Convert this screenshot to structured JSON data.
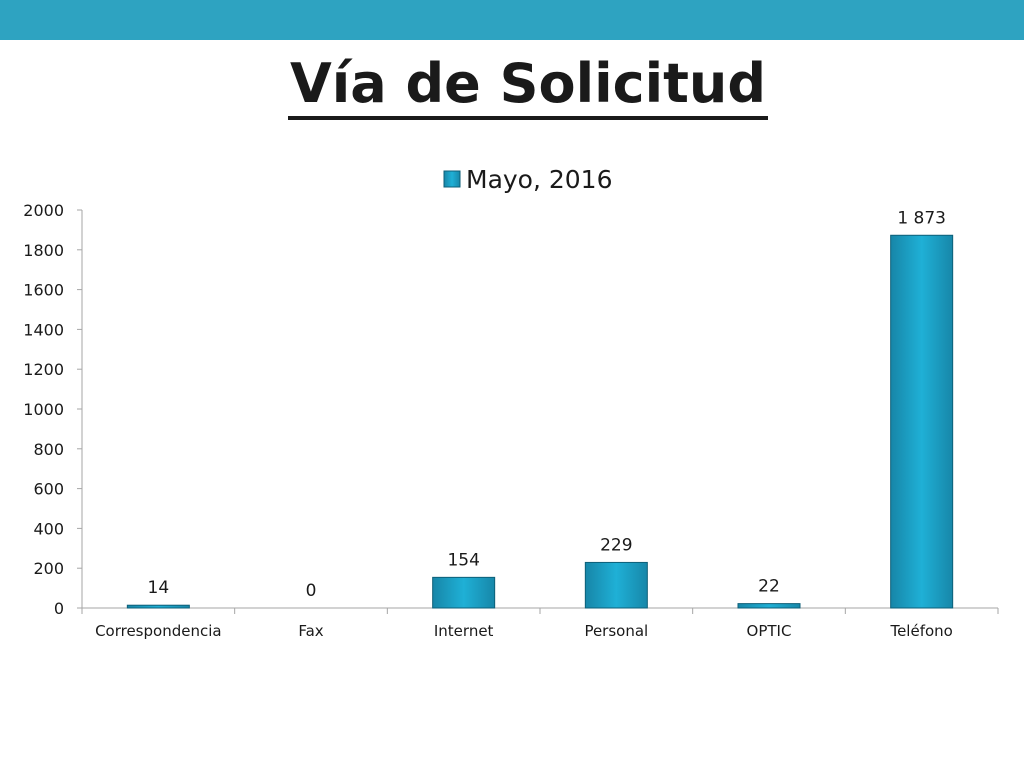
{
  "slide": {
    "title": "Vía de Solicitud",
    "accent_color": "#2ea3c1"
  },
  "chart_data": {
    "type": "bar",
    "categories": [
      "Correspondencia",
      "Fax",
      "Internet",
      "Personal",
      "OPTIC",
      "Teléfono"
    ],
    "series": [
      {
        "name": "Mayo, 2016",
        "values": [
          14,
          0,
          154,
          229,
          22,
          1873
        ],
        "data_labels": [
          "14",
          "0",
          "154",
          "229",
          "22",
          "1 873"
        ],
        "color": "#1aa7cf"
      }
    ],
    "yticks": [
      "0",
      "200",
      "400",
      "600",
      "800",
      "1000",
      "1200",
      "1400",
      "1600",
      "1800",
      "2000"
    ],
    "ylim": [
      0,
      2000
    ],
    "grid": false,
    "legend_position": "top"
  }
}
